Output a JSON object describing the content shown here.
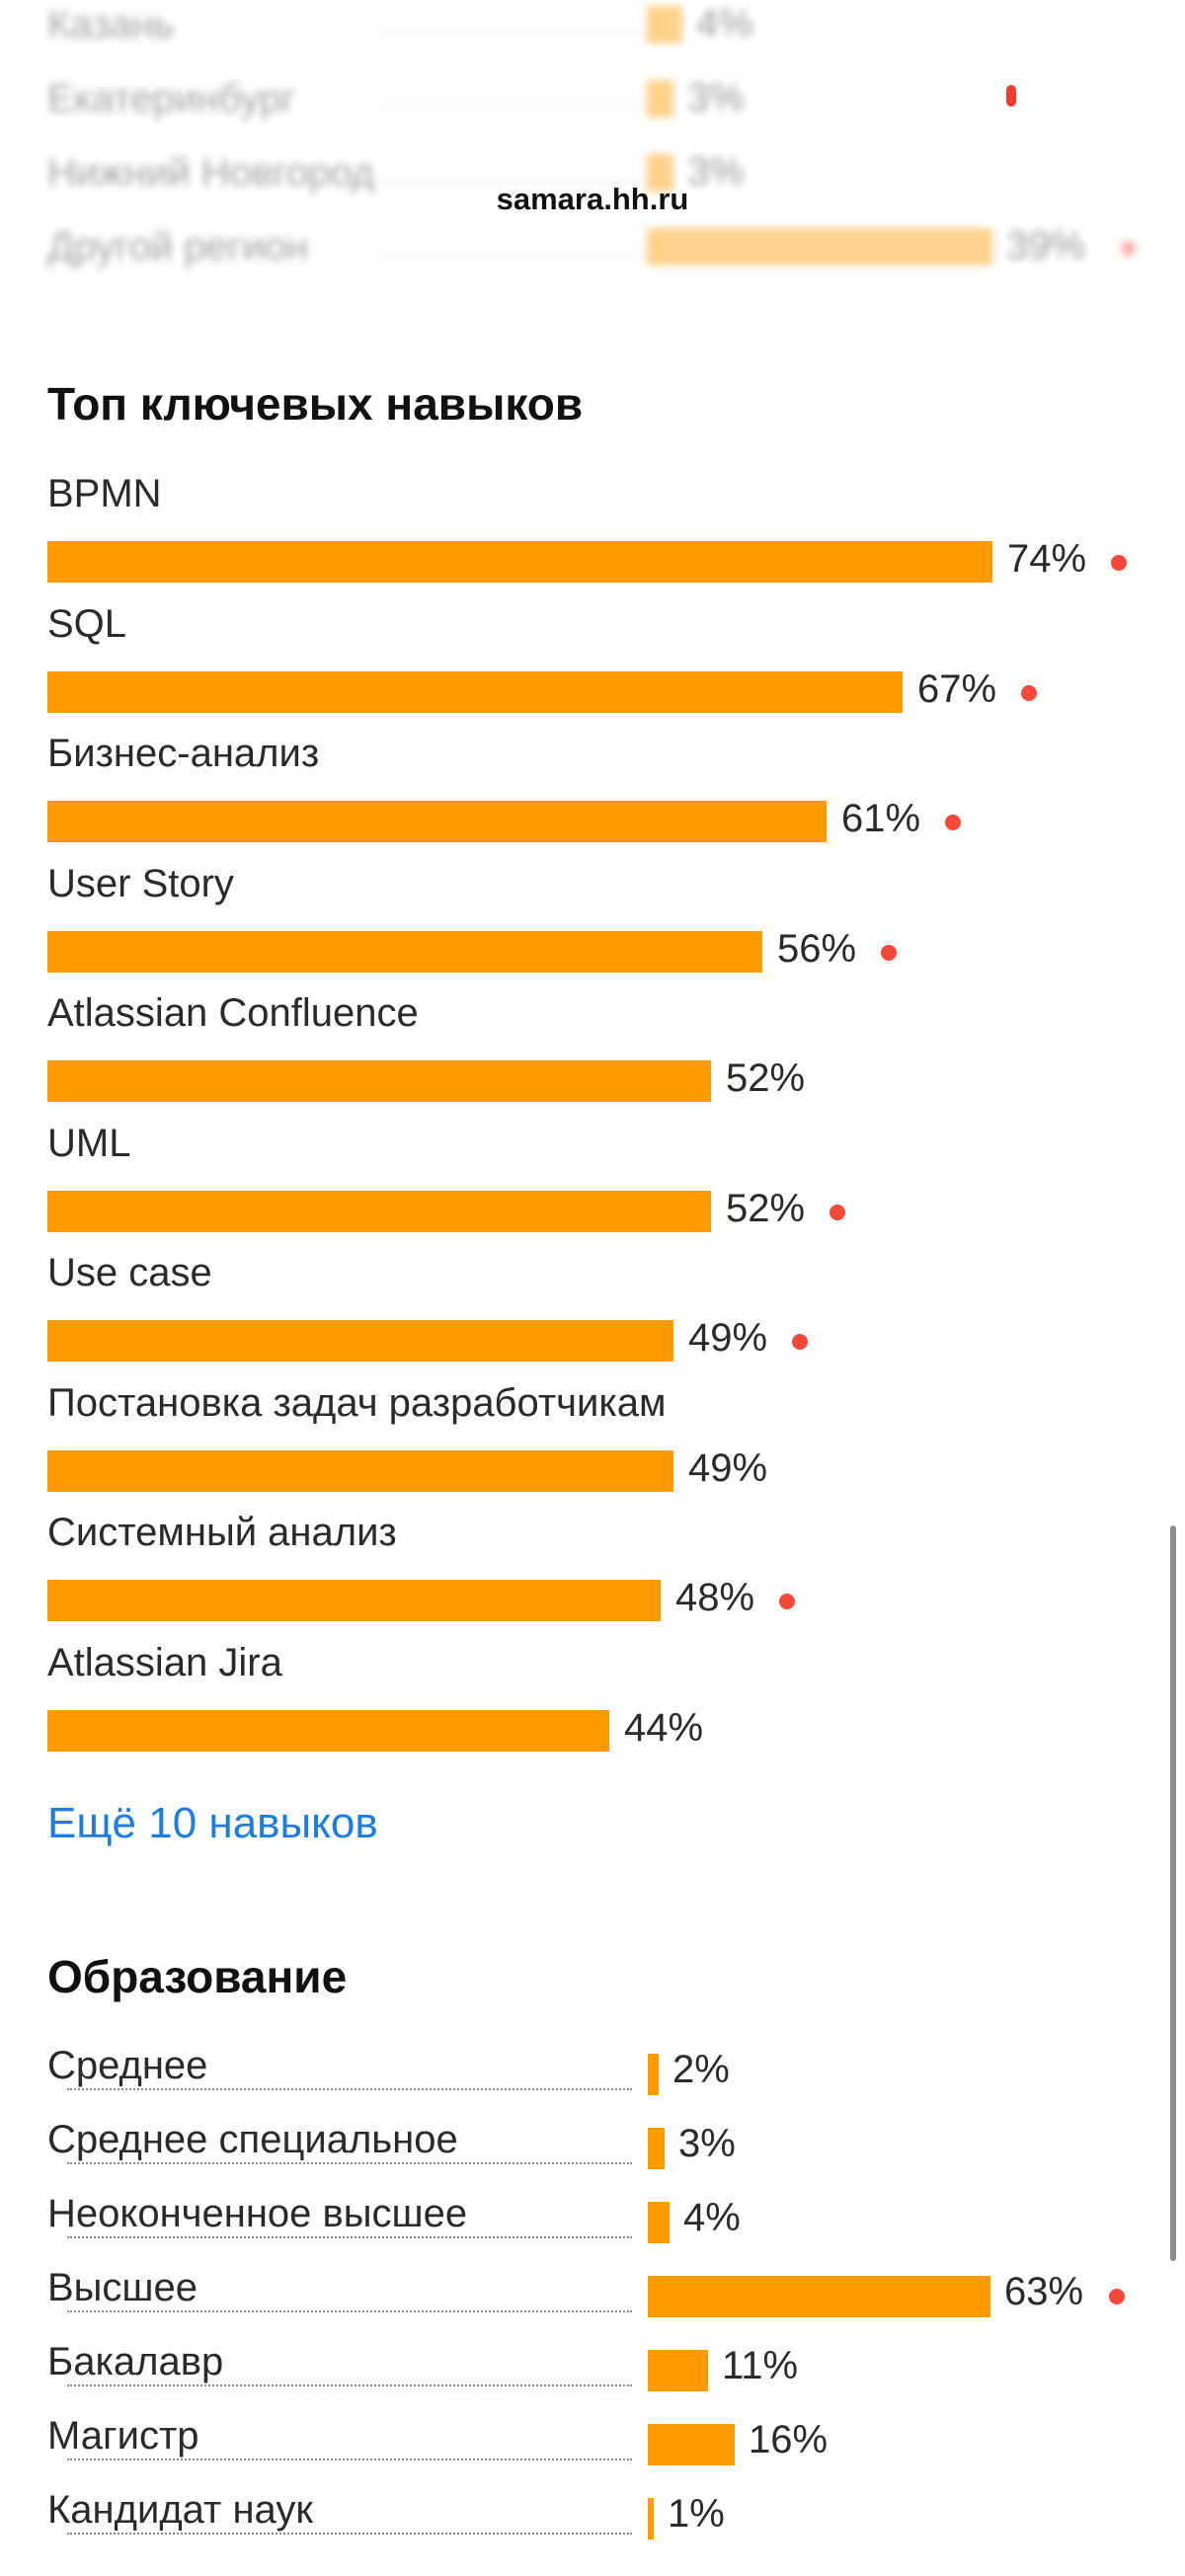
{
  "browser": {
    "domain": "samara.hh.ru"
  },
  "regions": {
    "rows": [
      {
        "label": "Казань",
        "percent": 4,
        "percent_label": "4%",
        "highlight": false
      },
      {
        "label": "Екатеринбург",
        "percent": 3,
        "percent_label": "3%",
        "highlight": false
      },
      {
        "label": "Нижний Новгород",
        "percent": 3,
        "percent_label": "3%",
        "highlight": false
      },
      {
        "label": "Другой регион",
        "percent": 39,
        "percent_label": "39%",
        "highlight": true
      }
    ]
  },
  "skills": {
    "title": "Топ ключевых навыков",
    "items": [
      {
        "label": "BPMN",
        "percent": 74,
        "percent_label": "74%",
        "highlight": true
      },
      {
        "label": "SQL",
        "percent": 67,
        "percent_label": "67%",
        "highlight": true
      },
      {
        "label": "Бизнес-анализ",
        "percent": 61,
        "percent_label": "61%",
        "highlight": true
      },
      {
        "label": "User Story",
        "percent": 56,
        "percent_label": "56%",
        "highlight": true
      },
      {
        "label": "Atlassian Confluence",
        "percent": 52,
        "percent_label": "52%",
        "highlight": false
      },
      {
        "label": "UML",
        "percent": 52,
        "percent_label": "52%",
        "highlight": true
      },
      {
        "label": "Use case",
        "percent": 49,
        "percent_label": "49%",
        "highlight": true
      },
      {
        "label": "Постановка задач разработчикам",
        "percent": 49,
        "percent_label": "49%",
        "highlight": false
      },
      {
        "label": "Системный анализ",
        "percent": 48,
        "percent_label": "48%",
        "highlight": true
      },
      {
        "label": "Atlassian Jira",
        "percent": 44,
        "percent_label": "44%",
        "highlight": false
      }
    ],
    "more_link": "Ещё 10 навыков"
  },
  "education": {
    "title": "Образование",
    "items": [
      {
        "label": "Среднее",
        "percent": 2,
        "percent_label": "2%",
        "highlight": false
      },
      {
        "label": "Среднее специальное",
        "percent": 3,
        "percent_label": "3%",
        "highlight": false
      },
      {
        "label": "Неоконченное высшее",
        "percent": 4,
        "percent_label": "4%",
        "highlight": false
      },
      {
        "label": "Высшее",
        "percent": 63,
        "percent_label": "63%",
        "highlight": true
      },
      {
        "label": "Бакалавр",
        "percent": 11,
        "percent_label": "11%",
        "highlight": false
      },
      {
        "label": "Магистр",
        "percent": 16,
        "percent_label": "16%",
        "highlight": false
      },
      {
        "label": "Кандидат наук",
        "percent": 1,
        "percent_label": "1%",
        "highlight": false
      }
    ]
  },
  "colors": {
    "bar": "#ff9a00",
    "highlight_dot": "#f4483a",
    "link": "#1b7de4"
  }
}
